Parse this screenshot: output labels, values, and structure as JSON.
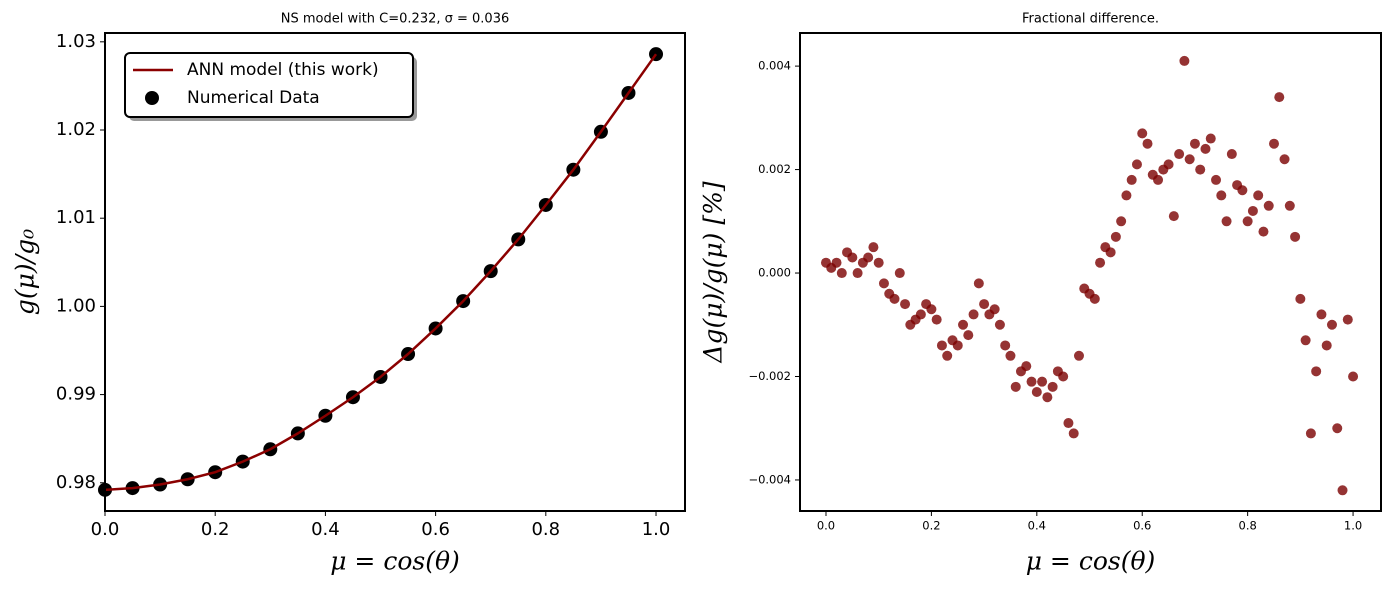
{
  "chart_data": [
    {
      "type": "line",
      "title": "NS model with C=0.232, σ = 0.036",
      "xlabel": "μ = cos(θ)",
      "ylabel": "g(μ)/g₀",
      "x": [
        0,
        0.05,
        0.1,
        0.15,
        0.2,
        0.25,
        0.3,
        0.35,
        0.4,
        0.45,
        0.5,
        0.55,
        0.6,
        0.65,
        0.7,
        0.75,
        0.8,
        0.85,
        0.9,
        0.95,
        1.0
      ],
      "series": [
        {
          "name": "ANN model (this work)",
          "type": "line",
          "color": "#8b0000",
          "values": [
            0.9792,
            0.9794,
            0.9798,
            0.9804,
            0.9812,
            0.9824,
            0.9838,
            0.9856,
            0.9876,
            0.9897,
            0.992,
            0.9946,
            0.9975,
            1.0006,
            1.004,
            1.0076,
            1.0115,
            1.0155,
            1.0198,
            1.0242,
            1.0286
          ]
        },
        {
          "name": "Numerical Data",
          "type": "scatter",
          "color": "#000000",
          "values": [
            0.9792,
            0.9794,
            0.9798,
            0.9804,
            0.9812,
            0.9824,
            0.9838,
            0.9856,
            0.9876,
            0.9897,
            0.992,
            0.9946,
            0.9975,
            1.0006,
            1.004,
            1.0076,
            1.0115,
            1.0155,
            1.0198,
            1.0242,
            1.0286
          ]
        }
      ],
      "xlim": [
        0,
        1.0526
      ],
      "xticks": [
        {
          "value": 0,
          "label": "0.0"
        },
        0.2,
        0.4,
        0.6,
        0.8,
        {
          "value": 1,
          "label": "1.0"
        }
      ],
      "ylim": [
        0.9768,
        1.031
      ],
      "yticks": [
        0.98,
        0.99,
        {
          "value": 1,
          "label": "1.00"
        },
        1.01,
        1.02,
        1.03
      ],
      "legend": "upper left",
      "grid": false
    },
    {
      "type": "scatter",
      "title": "Fractional difference.",
      "xlabel": "μ = cos(θ)",
      "ylabel": "Δg(μ)/g(μ)  [%]",
      "x": [
        0,
        0.01,
        0.02,
        0.03,
        0.04,
        0.05,
        0.06,
        0.07,
        0.08,
        0.09,
        0.1,
        0.11,
        0.12,
        0.13,
        0.14,
        0.15,
        0.16,
        0.17,
        0.18,
        0.19,
        0.2,
        0.21,
        0.22,
        0.23,
        0.24,
        0.25,
        0.26,
        0.27,
        0.28,
        0.29,
        0.3,
        0.31,
        0.32,
        0.33,
        0.34,
        0.35,
        0.36,
        0.37,
        0.38,
        0.39,
        0.4,
        0.41,
        0.42,
        0.43,
        0.44,
        0.45,
        0.46,
        0.47,
        0.48,
        0.49,
        0.5,
        0.51,
        0.52,
        0.53,
        0.54,
        0.55,
        0.56,
        0.57,
        0.58,
        0.59,
        0.6,
        0.61,
        0.62,
        0.63,
        0.64,
        0.65,
        0.66,
        0.67,
        0.68,
        0.69,
        0.7,
        0.71,
        0.72,
        0.73,
        0.74,
        0.75,
        0.76,
        0.77,
        0.78,
        0.79,
        0.8,
        0.81,
        0.82,
        0.83,
        0.84,
        0.85,
        0.86,
        0.87,
        0.88,
        0.89,
        0.9,
        0.91,
        0.92,
        0.93,
        0.94,
        0.95,
        0.96,
        0.97,
        0.98,
        0.99,
        1.0
      ],
      "color": "#7b0000",
      "values": [
        0.0002,
        0.0001,
        0.0002,
        0,
        0.0004,
        0.0003,
        0,
        0.0002,
        0.0003,
        0.0005,
        0.0002,
        -0.0002,
        -0.0004,
        -0.0005,
        0,
        -0.0006,
        -0.001,
        -0.0009,
        -0.0008,
        -0.0006,
        -0.0007,
        -0.0009,
        -0.0014,
        -0.0016,
        -0.0013,
        -0.0014,
        -0.001,
        -0.0012,
        -0.0008,
        -0.0002,
        -0.0006,
        -0.0008,
        -0.0007,
        -0.001,
        -0.0014,
        -0.0016,
        -0.0022,
        -0.0019,
        -0.0018,
        -0.0021,
        -0.0023,
        -0.0021,
        -0.0024,
        -0.0022,
        -0.0019,
        -0.002,
        -0.0029,
        -0.0031,
        -0.0016,
        -0.0003,
        -0.0004,
        -0.0005,
        0.0002,
        0.0005,
        0.0004,
        0.0007,
        0.001,
        0.0015,
        0.0018,
        0.0021,
        0.0027,
        0.0025,
        0.0019,
        0.0018,
        0.002,
        0.0021,
        0.0011,
        0.0023,
        0.0041,
        0.0022,
        0.0025,
        0.002,
        0.0024,
        0.0026,
        0.0018,
        0.0015,
        0.001,
        0.0023,
        0.0017,
        0.0016,
        0.001,
        0.0012,
        0.0015,
        0.0008,
        0.0013,
        0.0025,
        0.0034,
        0.0022,
        0.0013,
        0.0007,
        -0.0005,
        -0.0013,
        -0.0031,
        -0.0019,
        -0.0008,
        -0.0014,
        -0.001,
        -0.003,
        -0.0042,
        -0.0009,
        -0.002
      ],
      "xlim": [
        -0.0493,
        1.053
      ],
      "xticks": [
        {
          "value": 0,
          "label": "0.0"
        },
        0.2,
        0.4,
        0.6,
        0.8,
        {
          "value": 1,
          "label": "1.0"
        }
      ],
      "ylim": [
        -0.0046,
        0.00464
      ],
      "yticks": [
        {
          "value": -0.004,
          "label": "−0.004"
        },
        {
          "value": -0.002,
          "label": "−0.002"
        },
        {
          "value": 0,
          "label": "0.000"
        },
        0.002,
        0.004
      ],
      "grid": false
    }
  ]
}
